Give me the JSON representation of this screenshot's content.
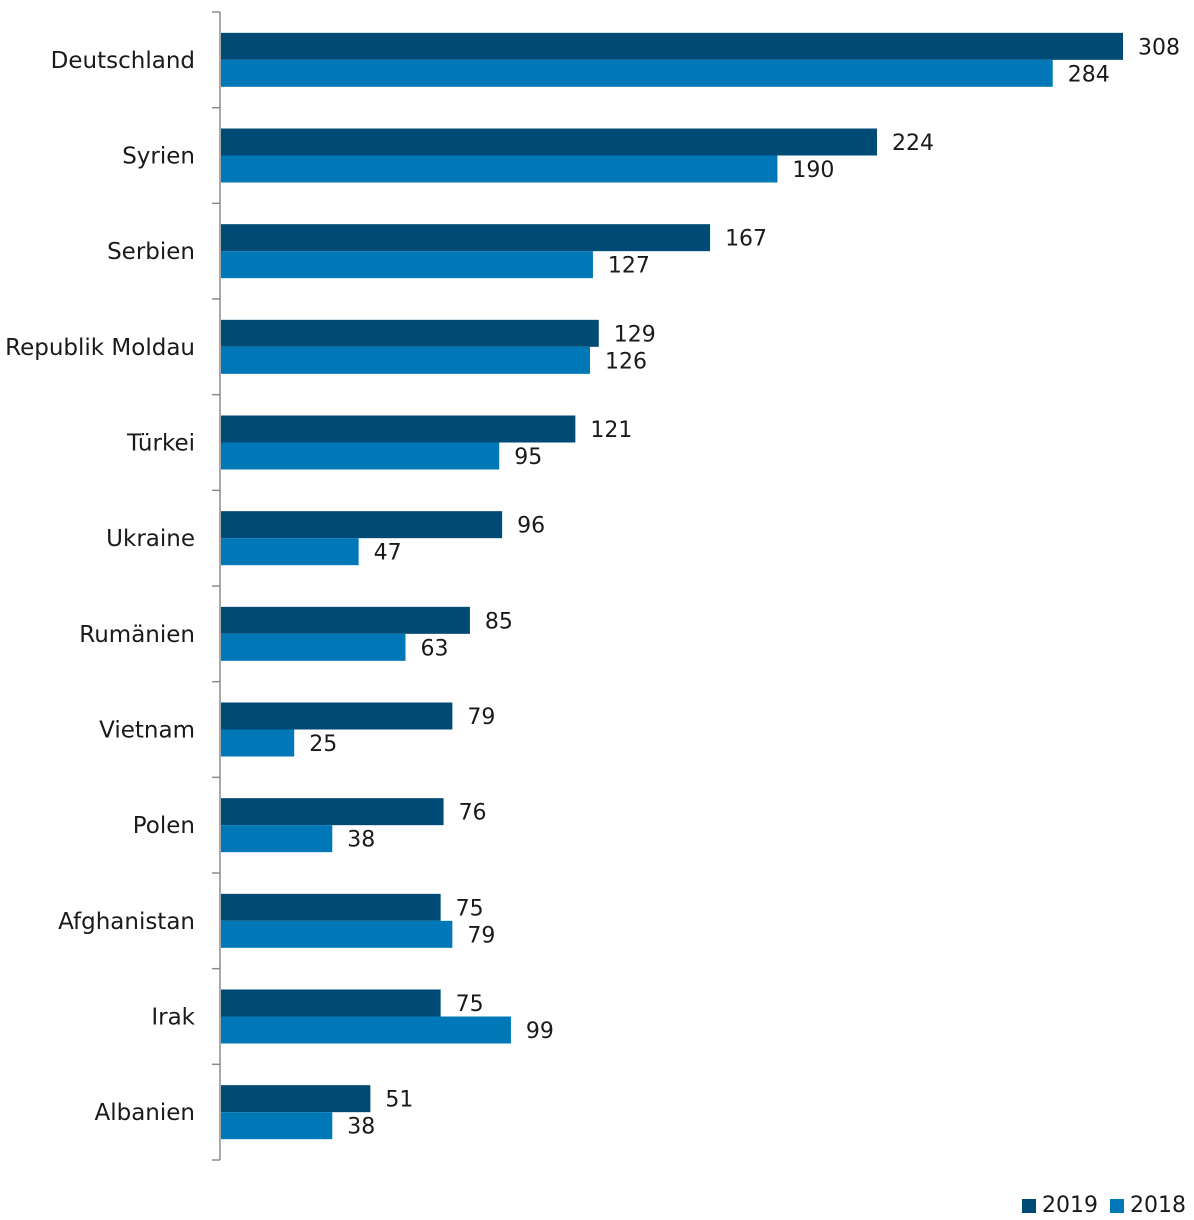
{
  "chart_data": {
    "type": "bar",
    "orientation": "horizontal",
    "categories": [
      "Deutschland",
      "Syrien",
      "Serbien",
      "Republik Moldau",
      "Türkei",
      "Ukraine",
      "Rumänien",
      "Vietnam",
      "Polen",
      "Afghanistan",
      "Irak",
      "Albanien"
    ],
    "series": [
      {
        "name": "2019",
        "color": "#004b76",
        "values": [
          308,
          224,
          167,
          129,
          121,
          96,
          85,
          79,
          76,
          75,
          75,
          51
        ]
      },
      {
        "name": "2018",
        "color": "#0077b6",
        "values": [
          284,
          190,
          127,
          126,
          95,
          47,
          63,
          25,
          38,
          79,
          99,
          38
        ]
      }
    ],
    "xlim": [
      0,
      320
    ],
    "grid": false,
    "legend_position": "bottom-right",
    "data_labels": true
  }
}
